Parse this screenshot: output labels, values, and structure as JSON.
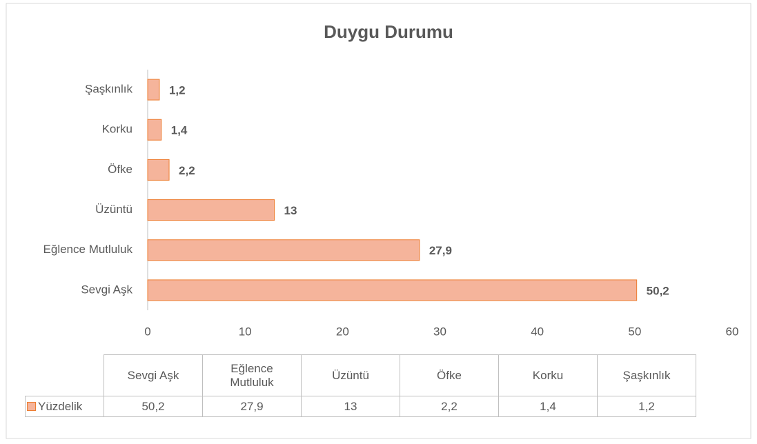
{
  "chart_data": {
    "type": "bar",
    "orientation": "horizontal",
    "title": "Duygu Durumu",
    "categories": [
      "Sevgi Aşk",
      "Eğlence Mutluluk",
      "Üzüntü",
      "Öfke",
      "Korku",
      "Şaşkınlık"
    ],
    "series": [
      {
        "name": "Yüzdelik",
        "color": "#f5b49b",
        "edge_color": "#ed7d31",
        "values": [
          50.2,
          27.9,
          13,
          2.2,
          1.4,
          1.2
        ],
        "value_labels": [
          "50,2",
          "27,9",
          "13",
          "2,2",
          "1,4",
          "1,2"
        ]
      }
    ],
    "xlim": [
      0,
      60
    ],
    "xticks": [
      0,
      10,
      20,
      30,
      40,
      50,
      60
    ],
    "grid": false,
    "data_table": true
  }
}
